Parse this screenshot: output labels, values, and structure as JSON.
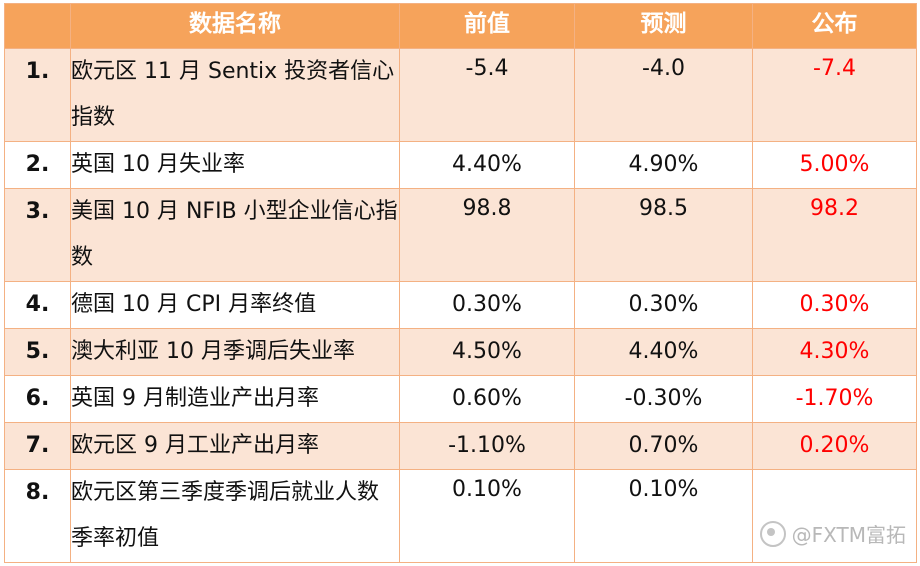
{
  "header": {
    "col_index": "",
    "col_name": "数据名称",
    "col_previous": "前值",
    "col_forecast": "预测",
    "col_actual": "公布"
  },
  "rows": [
    {
      "num": "1.",
      "name": "欧元区 11 月 Sentix 投资者信心指数",
      "previous": "-5.4",
      "forecast": "-4.0",
      "actual": "-7.4"
    },
    {
      "num": "2.",
      "name": "英国 10 月失业率",
      "previous": "4.40%",
      "forecast": "4.90%",
      "actual": "5.00%"
    },
    {
      "num": "3.",
      "name": "美国 10 月 NFIB 小型企业信心指数",
      "previous": "98.8",
      "forecast": "98.5",
      "actual": "98.2"
    },
    {
      "num": "4.",
      "name": "德国 10 月 CPI 月率终值",
      "previous": "0.30%",
      "forecast": "0.30%",
      "actual": "0.30%"
    },
    {
      "num": "5.",
      "name": "澳大利亚 10 月季调后失业率",
      "previous": "4.50%",
      "forecast": "4.40%",
      "actual": "4.30%"
    },
    {
      "num": "6.",
      "name": "英国 9 月制造业产出月率",
      "previous": "0.60%",
      "forecast": "-0.30%",
      "actual": "-1.70%"
    },
    {
      "num": "7.",
      "name": "欧元区 9 月工业产出月率",
      "previous": "-1.10%",
      "forecast": "0.70%",
      "actual": "0.20%"
    },
    {
      "num": "8.",
      "name": "欧元区第三季度季调后就业人数季率初值",
      "previous": "0.10%",
      "forecast": "0.10%",
      "actual": ""
    }
  ],
  "watermark": {
    "text": "@FXTM富拓",
    "icon": "wechat-channel-icon"
  },
  "colors": {
    "header_bg": "#f6a35b",
    "shaded_row_bg": "#fbe4d5",
    "border": "#f4b183",
    "actual_text": "#ff0000"
  }
}
